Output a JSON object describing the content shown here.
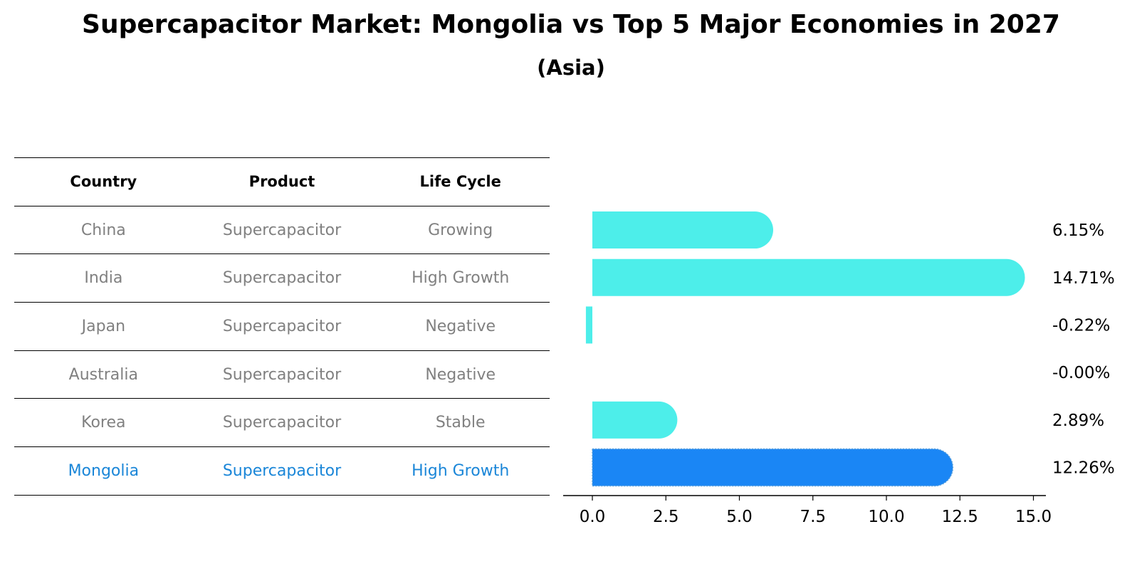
{
  "title": "Supercapacitor Market: Mongolia vs Top 5 Major Economies in 2027",
  "subtitle": "(Asia)",
  "table": {
    "headers": [
      "Country",
      "Product",
      "Life Cycle"
    ],
    "rows": [
      {
        "country": "China",
        "product": "Supercapacitor",
        "life_cycle": "Growing"
      },
      {
        "country": "India",
        "product": "Supercapacitor",
        "life_cycle": "High Growth"
      },
      {
        "country": "Japan",
        "product": "Supercapacitor",
        "life_cycle": "Negative"
      },
      {
        "country": "Australia",
        "product": "Supercapacitor",
        "life_cycle": "Negative"
      },
      {
        "country": "Korea",
        "product": "Supercapacitor",
        "life_cycle": "Stable"
      },
      {
        "country": "Mongolia",
        "product": "Supercapacitor",
        "life_cycle": "High Growth"
      }
    ]
  },
  "colors": {
    "bar": "#4deeea",
    "highlight_bar": "#1a86f5",
    "highlight_text": "#1a86d8",
    "muted_text": "#808080"
  },
  "chart_data": {
    "type": "bar",
    "orientation": "horizontal",
    "title": "Supercapacitor Market: Mongolia vs Top 5 Major Economies in 2027",
    "subtitle": "(Asia)",
    "categories": [
      "China",
      "India",
      "Japan",
      "Australia",
      "Korea",
      "Mongolia"
    ],
    "values": [
      6.15,
      14.71,
      -0.22,
      -0.0,
      2.89,
      12.26
    ],
    "value_labels": [
      "6.15%",
      "14.71%",
      "-0.22%",
      "-0.00%",
      "2.89%",
      "12.26%"
    ],
    "highlight": "Mongolia",
    "xlim": [
      -0.98,
      15.5
    ],
    "xticks": [
      0.0,
      2.5,
      5.0,
      7.5,
      10.0,
      12.5,
      15.0
    ],
    "xtick_labels": [
      "0.0",
      "2.5",
      "5.0",
      "7.5",
      "10.0",
      "12.5",
      "15.0"
    ],
    "xlabel": "",
    "ylabel": "",
    "grid": false
  }
}
